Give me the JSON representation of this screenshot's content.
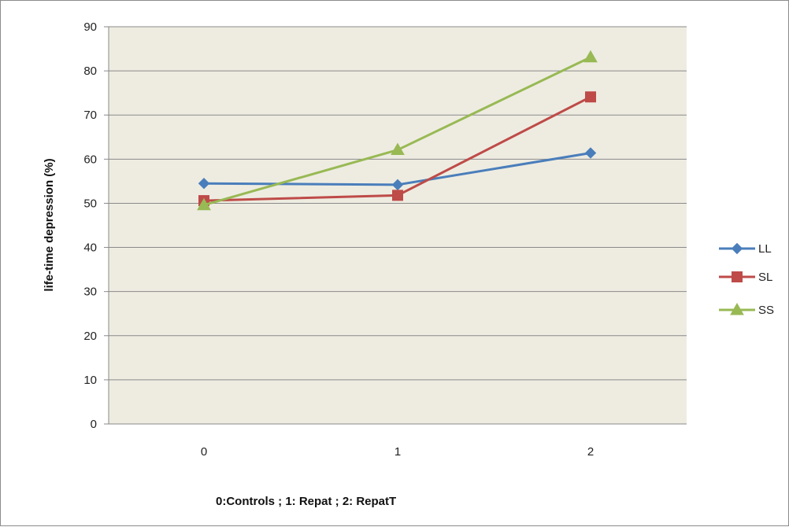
{
  "chart_data": {
    "type": "line",
    "title": "",
    "xlabel": "0:Controls ;  1: Repat ;  2: RepatT",
    "ylabel": "life-time depression (%)",
    "x": [
      0,
      1,
      2
    ],
    "xticks": [
      "0",
      "1",
      "2"
    ],
    "ylim": [
      0,
      90
    ],
    "yticks": [
      0,
      10,
      20,
      30,
      40,
      50,
      60,
      70,
      80,
      90
    ],
    "grid": true,
    "legend_position": "right",
    "plot_background": "#eeece1",
    "series": [
      {
        "name": "LL",
        "values": [
          54.5,
          54.2,
          61.4
        ],
        "color": "#4a7ebb",
        "marker": "diamond"
      },
      {
        "name": "SL",
        "values": [
          50.6,
          51.8,
          74.1
        ],
        "color": "#be4b48",
        "marker": "square"
      },
      {
        "name": "SS",
        "values": [
          49.6,
          62.1,
          83.1
        ],
        "color": "#98b954",
        "marker": "triangle"
      }
    ]
  }
}
